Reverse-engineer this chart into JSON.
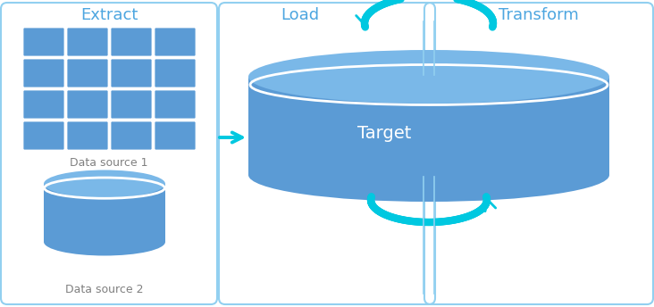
{
  "bg_color": "#ffffff",
  "border_color": "#92d0f0",
  "blue_fill": "#5b9bd5",
  "blue_top": "#7ab8e8",
  "blue_side": "#4a82c0",
  "cyan_arrow": "#00c8e0",
  "label_color": "#4da6e0",
  "text_white": "#ffffff",
  "text_dark": "#808080",
  "title_extract": "Extract",
  "title_load": "Load",
  "title_transform": "Transform",
  "label_ds1": "Data source 1",
  "label_ds2": "Data source 2",
  "label_target": "Target"
}
